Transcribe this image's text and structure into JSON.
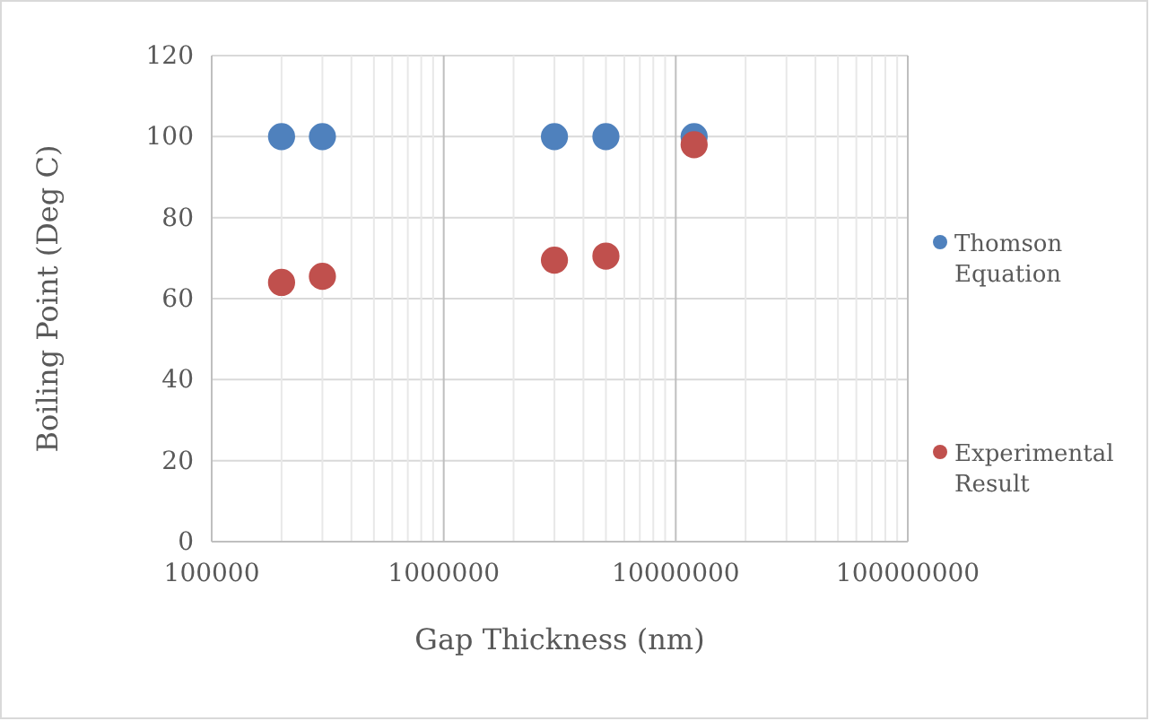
{
  "chart_data": {
    "type": "scatter",
    "xlabel": "Gap Thickness (nm)",
    "ylabel": "Boiling Point (Deg C)",
    "log": "x",
    "xlim": [
      100000,
      100000000
    ],
    "ylim": [
      0,
      120
    ],
    "xticks": [
      100000,
      {
        "value": 200000,
        "label": null
      },
      {
        "value": 300000,
        "label": null
      },
      {
        "value": 400000,
        "label": null
      },
      {
        "value": 500000,
        "label": null
      },
      {
        "value": 600000,
        "label": null
      },
      {
        "value": 700000,
        "label": null
      },
      {
        "value": 800000,
        "label": null
      },
      {
        "value": 900000,
        "label": null
      },
      1000000,
      {
        "value": 2000000,
        "label": null
      },
      {
        "value": 3000000,
        "label": null
      },
      {
        "value": 4000000,
        "label": null
      },
      {
        "value": 5000000,
        "label": null
      },
      {
        "value": 6000000,
        "label": null
      },
      {
        "value": 7000000,
        "label": null
      },
      {
        "value": 8000000,
        "label": null
      },
      {
        "value": 9000000,
        "label": null
      },
      10000000,
      {
        "value": 20000000,
        "label": null
      },
      {
        "value": 30000000,
        "label": null
      },
      {
        "value": 40000000,
        "label": null
      },
      {
        "value": 50000000,
        "label": null
      },
      {
        "value": 60000000,
        "label": null
      },
      {
        "value": 70000000,
        "label": null
      },
      {
        "value": 80000000,
        "label": null
      },
      {
        "value": 90000000,
        "label": null
      },
      100000000
    ],
    "yticks": [
      0,
      20,
      40,
      60,
      80,
      100,
      120
    ],
    "grid": true,
    "legend": "right",
    "marker": "circle",
    "x": [
      200000,
      300000,
      3000000,
      5000000,
      12000000
    ],
    "series": [
      {
        "name": "Thomson Equation",
        "color": "#4f81bd",
        "values": [
          100,
          100,
          100,
          100,
          100
        ]
      },
      {
        "name": "Experimental Result",
        "color": "#c0504d",
        "values": [
          64,
          65.5,
          69.5,
          70.5,
          98
        ]
      }
    ]
  }
}
